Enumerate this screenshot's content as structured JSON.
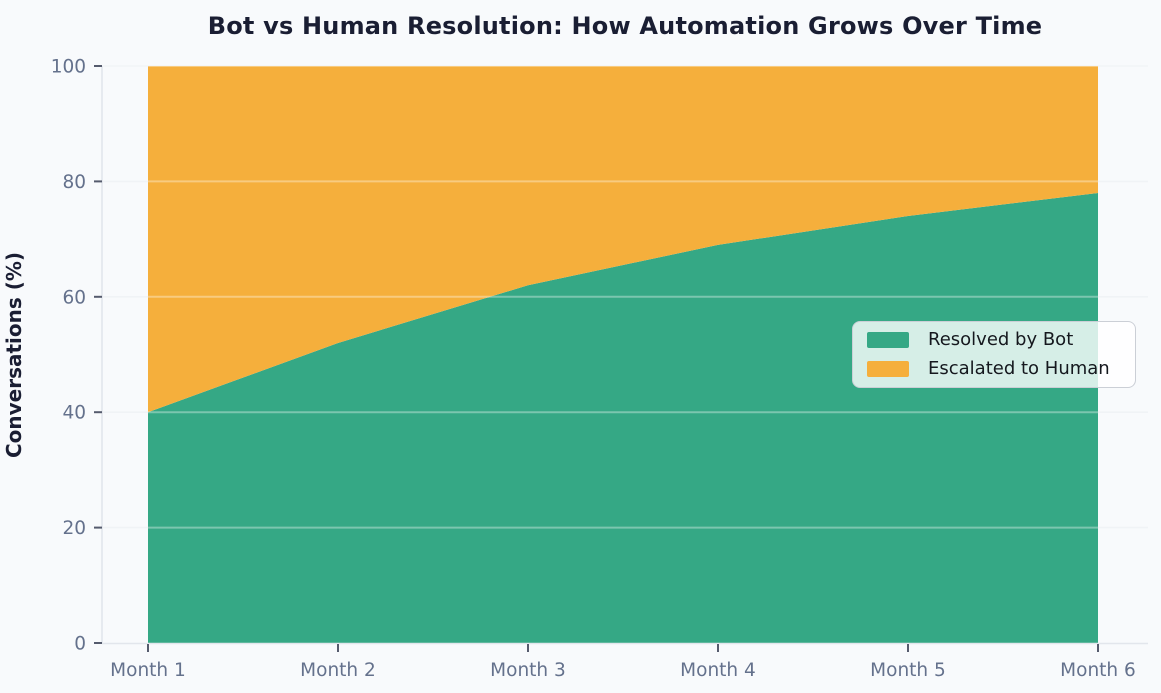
{
  "chart_data": {
    "type": "area",
    "stacked": true,
    "title": "Bot vs Human Resolution: How Automation Grows Over Time",
    "xlabel": "",
    "ylabel": "Conversations (%)",
    "categories": [
      "Month 1",
      "Month 2",
      "Month 3",
      "Month 4",
      "Month 5",
      "Month 6"
    ],
    "series": [
      {
        "name": "Resolved by Bot",
        "values": [
          40,
          52,
          62,
          69,
          74,
          78
        ],
        "color": "#35a885"
      },
      {
        "name": "Escalated to Human",
        "values": [
          60,
          48,
          38,
          31,
          26,
          22
        ],
        "color": "#f5af3c"
      }
    ],
    "ylim": [
      0,
      100
    ],
    "yticks": [
      0,
      20,
      40,
      60,
      80,
      100
    ],
    "grid": "horizontal",
    "legend_position": "center-right"
  },
  "colors": {
    "figure_background": "#f8fafc",
    "title_text": "#1a1e33",
    "tick_label": "#64718c",
    "tick_mark": "#555b6d",
    "spine": "#e2e6ec",
    "gridline": "#e9edf2",
    "gridline_over_area": "rgba(255,255,255,0.35)",
    "legend_border": "#cbcfd6"
  }
}
